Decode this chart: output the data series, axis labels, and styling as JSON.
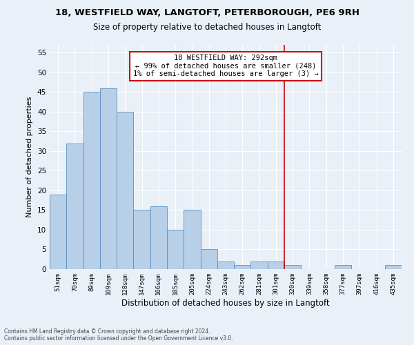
{
  "title1": "18, WESTFIELD WAY, LANGTOFT, PETERBOROUGH, PE6 9RH",
  "title2": "Size of property relative to detached houses in Langtoft",
  "xlabel": "Distribution of detached houses by size in Langtoft",
  "ylabel": "Number of detached properties",
  "footer1": "Contains HM Land Registry data © Crown copyright and database right 2024.",
  "footer2": "Contains public sector information licensed under the Open Government Licence v3.0.",
  "bar_labels": [
    "51sqm",
    "70sqm",
    "89sqm",
    "109sqm",
    "128sqm",
    "147sqm",
    "166sqm",
    "185sqm",
    "205sqm",
    "224sqm",
    "243sqm",
    "262sqm",
    "281sqm",
    "301sqm",
    "320sqm",
    "339sqm",
    "358sqm",
    "377sqm",
    "397sqm",
    "416sqm",
    "435sqm"
  ],
  "bar_values": [
    19,
    32,
    45,
    46,
    40,
    15,
    16,
    10,
    15,
    5,
    2,
    1,
    2,
    2,
    1,
    0,
    0,
    1,
    0,
    0,
    1
  ],
  "bar_color": "#b8cfe8",
  "bar_edge_color": "#5a8fc0",
  "bg_color": "#eaf0f8",
  "grid_color": "#ffffff",
  "vline_x": 13.5,
  "vline_color": "#cc0000",
  "annotation_text": "18 WESTFIELD WAY: 292sqm\n← 99% of detached houses are smaller (248)\n1% of semi-detached houses are larger (3) →",
  "annotation_box_color": "#cc0000",
  "ylim": [
    0,
    57
  ],
  "yticks": [
    0,
    5,
    10,
    15,
    20,
    25,
    30,
    35,
    40,
    45,
    50,
    55
  ],
  "title1_fontsize": 9.5,
  "title2_fontsize": 8.5,
  "annotation_fontsize": 7.5,
  "ylabel_fontsize": 8,
  "xlabel_fontsize": 8.5,
  "footer_fontsize": 5.5
}
